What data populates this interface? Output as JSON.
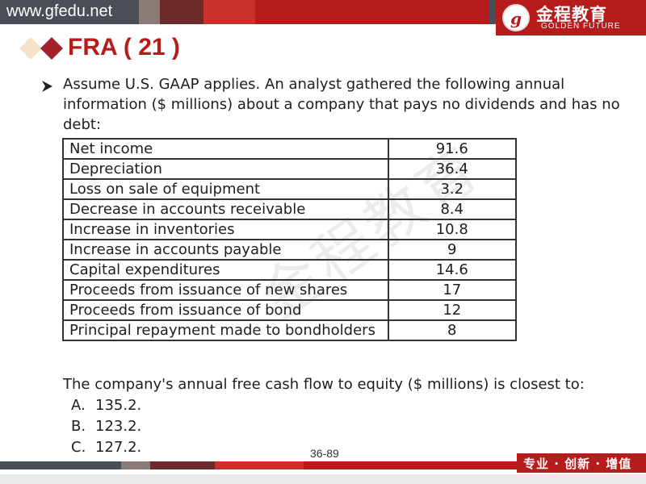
{
  "header": {
    "url": "www.gfedu.net",
    "logo_mark": "g",
    "logo_cn": "金程教育",
    "logo_en": "GOLDEN FUTURE"
  },
  "title": "FRA ( 21 )",
  "intro": "Assume U.S. GAAP applies. An analyst gathered the following annual information ($ millions) about a company that pays no dividends and has no debt:",
  "table": {
    "rows": [
      {
        "label": "Net income",
        "value": "91.6"
      },
      {
        "label": "Depreciation",
        "value": "36.4"
      },
      {
        "label": "Loss on sale of equipment",
        "value": "3.2"
      },
      {
        "label": "Decrease in accounts receivable",
        "value": "8.4"
      },
      {
        "label": "Increase in inventories",
        "value": "10.8"
      },
      {
        "label": "Increase in accounts payable",
        "value": "9"
      },
      {
        "label": "Capital expenditures",
        "value": "14.6"
      },
      {
        "label": "Proceeds from issuance of new shares",
        "value": "17"
      },
      {
        "label": "Proceeds from issuance of bond",
        "value": "12"
      },
      {
        "label": "Principal repayment made to bondholders",
        "value": "8"
      }
    ]
  },
  "question": "The company's annual free cash flow to equity ($ millions) is closest to:",
  "options": [
    {
      "letter": "A.",
      "text": "135.2."
    },
    {
      "letter": "B.",
      "text": "123.2."
    },
    {
      "letter": "C.",
      "text": "127.2."
    }
  ],
  "watermark": "金程教育",
  "page_number": "36-89",
  "footer_slogan": "专业 · 创新 · 增值",
  "colors": {
    "brand_red": "#b71c1c",
    "header_gray": "#4a4f57"
  }
}
